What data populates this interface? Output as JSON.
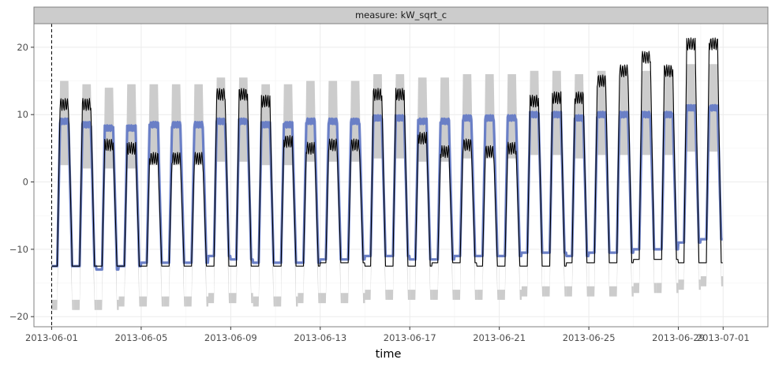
{
  "chart_data": {
    "type": "line",
    "facet_label": "measure: kW_sqrt_c",
    "xlabel": "time",
    "ylabel": "",
    "x_type": "date",
    "xlim": [
      "2013-05-31T05:00",
      "2013-07-03T00:00"
    ],
    "ylim": [
      -21.5,
      23.5
    ],
    "x_ticks": [
      "2013-06-01",
      "2013-06-05",
      "2013-06-09",
      "2013-06-13",
      "2013-06-17",
      "2013-06-21",
      "2013-06-25",
      "2013-06-29",
      "2013-07-01"
    ],
    "y_ticks": [
      -20,
      -10,
      0,
      10,
      20
    ],
    "grid": true,
    "cutoff_date": "2013-06-01",
    "colors": {
      "actual": "#000000",
      "forecast": "#6a7fc6",
      "interval": "#cccccc",
      "cutoff": "#000000",
      "strip_bg": "#cccccc",
      "grid": "#ebebeb"
    },
    "days": [
      "2013-06-01",
      "2013-06-02",
      "2013-06-03",
      "2013-06-04",
      "2013-06-05",
      "2013-06-06",
      "2013-06-07",
      "2013-06-08",
      "2013-06-09",
      "2013-06-10",
      "2013-06-11",
      "2013-06-12",
      "2013-06-13",
      "2013-06-14",
      "2013-06-15",
      "2013-06-16",
      "2013-06-17",
      "2013-06-18",
      "2013-06-19",
      "2013-06-20",
      "2013-06-21",
      "2013-06-22",
      "2013-06-23",
      "2013-06-24",
      "2013-06-25",
      "2013-06-26",
      "2013-06-27",
      "2013-06-28",
      "2013-06-29",
      "2013-06-30"
    ],
    "series": [
      {
        "role": "actual",
        "daily_high": [
          11.5,
          11.5,
          5.5,
          5.0,
          3.5,
          3.5,
          3.5,
          13.0,
          13.0,
          12.0,
          6.0,
          5.0,
          5.5,
          5.5,
          13.0,
          13.0,
          6.5,
          4.5,
          5.5,
          4.5,
          5.0,
          12.0,
          12.5,
          12.5,
          15.0,
          16.5,
          18.5,
          16.5,
          20.5,
          20.5
        ],
        "daily_low": [
          -12.5,
          -12.5,
          -12.5,
          -12.5,
          -12.5,
          -12.5,
          -12.5,
          -12.5,
          -12.5,
          -12.5,
          -12.5,
          -12.5,
          -12.0,
          -12.0,
          -12.5,
          -12.5,
          -12.5,
          -12.0,
          -12.0,
          -12.5,
          -12.5,
          -12.5,
          -12.5,
          -12.0,
          -12.0,
          -12.0,
          -11.5,
          -11.5,
          -12.0,
          -12.0
        ]
      },
      {
        "role": "forecast",
        "daily_high": [
          9.0,
          8.5,
          8.0,
          8.0,
          8.5,
          8.5,
          8.5,
          9.0,
          9.0,
          8.5,
          8.5,
          9.0,
          9.0,
          9.0,
          9.5,
          9.5,
          9.0,
          9.0,
          9.5,
          9.5,
          9.5,
          10.0,
          10.0,
          9.5,
          10.0,
          10.0,
          10.0,
          10.0,
          11.0,
          11.0
        ],
        "daily_low": [
          -12.5,
          -12.5,
          -13.0,
          -12.5,
          -12.0,
          -12.0,
          -12.0,
          -11.0,
          -11.5,
          -12.0,
          -12.0,
          -12.0,
          -11.5,
          -11.5,
          -11.0,
          -11.0,
          -11.5,
          -11.5,
          -11.0,
          -11.0,
          -11.0,
          -10.5,
          -10.5,
          -11.0,
          -10.5,
          -10.5,
          -10.0,
          -10.0,
          -9.0,
          -8.5
        ]
      },
      {
        "role": "interval",
        "daily_upper": [
          15.0,
          14.5,
          14.0,
          14.5,
          14.5,
          14.5,
          14.5,
          15.5,
          15.5,
          14.5,
          14.5,
          15.0,
          15.0,
          15.0,
          16.0,
          16.0,
          15.5,
          15.5,
          16.0,
          16.0,
          16.0,
          16.5,
          16.5,
          16.0,
          16.5,
          16.5,
          16.5,
          16.5,
          17.5,
          17.5
        ],
        "daily_inner_upper": [
          2.5,
          2.0,
          2.0,
          2.0,
          2.5,
          2.5,
          2.5,
          3.0,
          3.0,
          2.5,
          2.5,
          3.0,
          3.0,
          3.0,
          3.5,
          3.5,
          3.0,
          3.0,
          3.5,
          3.5,
          3.5,
          4.0,
          4.0,
          3.5,
          4.0,
          4.0,
          4.0,
          4.0,
          4.5,
          4.5
        ],
        "daily_lower": [
          -19.0,
          -19.0,
          -19.0,
          -18.5,
          -18.5,
          -18.5,
          -18.5,
          -18.0,
          -18.0,
          -18.5,
          -18.5,
          -18.0,
          -18.0,
          -18.0,
          -17.5,
          -17.5,
          -17.5,
          -17.5,
          -17.5,
          -17.5,
          -17.5,
          -17.0,
          -17.0,
          -17.0,
          -17.0,
          -17.0,
          -16.5,
          -16.5,
          -16.0,
          -15.5
        ]
      }
    ]
  }
}
